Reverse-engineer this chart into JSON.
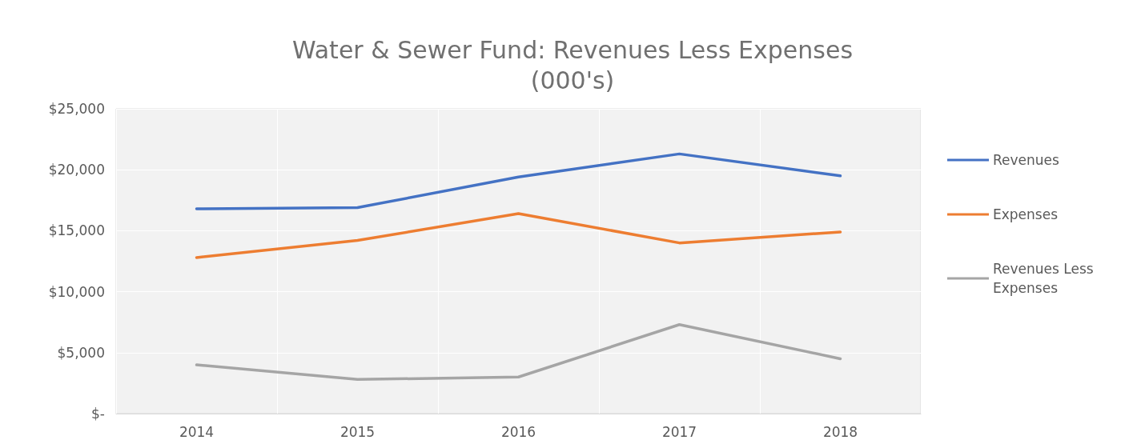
{
  "chart_data": {
    "type": "line",
    "title": "Water & Sewer Fund: Revenues Less Expenses\n(000's)",
    "categories": [
      "2014",
      "2015",
      "2016",
      "2017",
      "2018"
    ],
    "series": [
      {
        "name": "Revenues",
        "color": "#4472c4",
        "values": [
          16800,
          16900,
          19400,
          21300,
          19500
        ]
      },
      {
        "name": "Expenses",
        "color": "#ed7d31",
        "values": [
          12800,
          14200,
          16400,
          14000,
          14900
        ]
      },
      {
        "name": "Revenues Less Expenses",
        "color": "#a5a5a5",
        "values": [
          4000,
          2800,
          3000,
          7300,
          4500
        ]
      }
    ],
    "ylim": [
      0,
      25000
    ],
    "yticks": [
      {
        "value": 0,
        "label": "$-"
      },
      {
        "value": 5000,
        "label": "$5,000"
      },
      {
        "value": 10000,
        "label": "$10,000"
      },
      {
        "value": 15000,
        "label": "$15,000"
      },
      {
        "value": 20000,
        "label": "$20,000"
      },
      {
        "value": 25000,
        "label": "$25,000"
      }
    ],
    "grid": true,
    "legend": "right",
    "marker": "none",
    "line_style": "solid"
  }
}
